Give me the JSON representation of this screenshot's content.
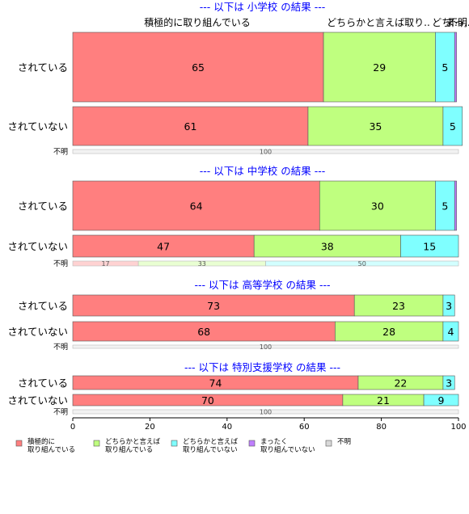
{
  "chart_data": {
    "type": "bar",
    "orientation": "horizontal",
    "stacked": true,
    "xlim": [
      0,
      100
    ],
    "x_ticks": [
      0,
      20,
      40,
      60,
      80,
      100
    ],
    "series_names": [
      "積極的に取り組んでいる",
      "どちらかと言えば取り組んでいる",
      "どちらかと言えば取り組んでいない",
      "まったく取り組んでいない",
      "不明"
    ],
    "series_colors": [
      "#ff7f7f",
      "#bfff7f",
      "#7fffff",
      "#bf7fff",
      "#d9d9d9"
    ],
    "top_labels": [
      "積極的に取り組んでいる",
      "どちらかと言えば取り..",
      "どち..",
      "まっ..",
      "不明"
    ],
    "legend": {
      "position": "bottom",
      "items": [
        {
          "line1": "積極的に",
          "line2": "取り組んでいる"
        },
        {
          "line1": "どちらかと言えば",
          "line2": "取り組んでいる"
        },
        {
          "line1": "どちらかと言えば",
          "line2": "取り組んでいない"
        },
        {
          "line1": "まったく",
          "line2": "取り組んでいない"
        },
        {
          "line1": "不明",
          "line2": ""
        }
      ]
    },
    "panels": [
      {
        "title": "--- 以下は 小学校 の結果 ---",
        "rows": [
          {
            "label": "されている",
            "values": [
              65,
              29,
              5,
              0.5,
              0
            ],
            "value_labels": [
              "65",
              "29",
              "5",
              "",
              ""
            ]
          },
          {
            "label": "されていない",
            "values": [
              61,
              35,
              5,
              0,
              0
            ],
            "value_labels": [
              "61",
              "35",
              "5",
              "",
              ""
            ]
          },
          {
            "label": "不明",
            "values": [
              0,
              0,
              0,
              0,
              100
            ],
            "value_labels": [
              "",
              "",
              "",
              "",
              "100"
            ]
          }
        ]
      },
      {
        "title": "--- 以下は 中学校 の結果 ---",
        "rows": [
          {
            "label": "されている",
            "values": [
              64,
              30,
              5,
              0.5,
              0
            ],
            "value_labels": [
              "64",
              "30",
              "5",
              "",
              ""
            ]
          },
          {
            "label": "されていない",
            "values": [
              47,
              38,
              15,
              0,
              0
            ],
            "value_labels": [
              "47",
              "38",
              "15",
              "",
              ""
            ]
          },
          {
            "label": "不明",
            "values": [
              17,
              33,
              50,
              0,
              0
            ],
            "value_labels": [
              "17",
              "33",
              "50",
              "",
              ""
            ]
          }
        ]
      },
      {
        "title": "--- 以下は 高等学校 の結果 ---",
        "rows": [
          {
            "label": "されている",
            "values": [
              73,
              23,
              3,
              0,
              0
            ],
            "value_labels": [
              "73",
              "23",
              "3",
              "",
              ""
            ]
          },
          {
            "label": "されていない",
            "values": [
              68,
              28,
              4,
              0,
              0
            ],
            "value_labels": [
              "68",
              "28",
              "4",
              "",
              ""
            ]
          },
          {
            "label": "不明",
            "values": [
              0,
              0,
              0,
              0,
              100
            ],
            "value_labels": [
              "",
              "",
              "",
              "",
              "100"
            ]
          }
        ]
      },
      {
        "title": "--- 以下は 特別支援学校 の結果 ---",
        "rows": [
          {
            "label": "されている",
            "values": [
              74,
              22,
              3,
              0,
              0
            ],
            "value_labels": [
              "74",
              "22",
              "3",
              "",
              ""
            ]
          },
          {
            "label": "されていない",
            "values": [
              70,
              21,
              9,
              0,
              0
            ],
            "value_labels": [
              "70",
              "21",
              "9",
              "",
              ""
            ]
          },
          {
            "label": "不明",
            "values": [
              0,
              0,
              0,
              0,
              100
            ],
            "value_labels": [
              "",
              "",
              "",
              "",
              "100"
            ]
          }
        ]
      }
    ]
  }
}
